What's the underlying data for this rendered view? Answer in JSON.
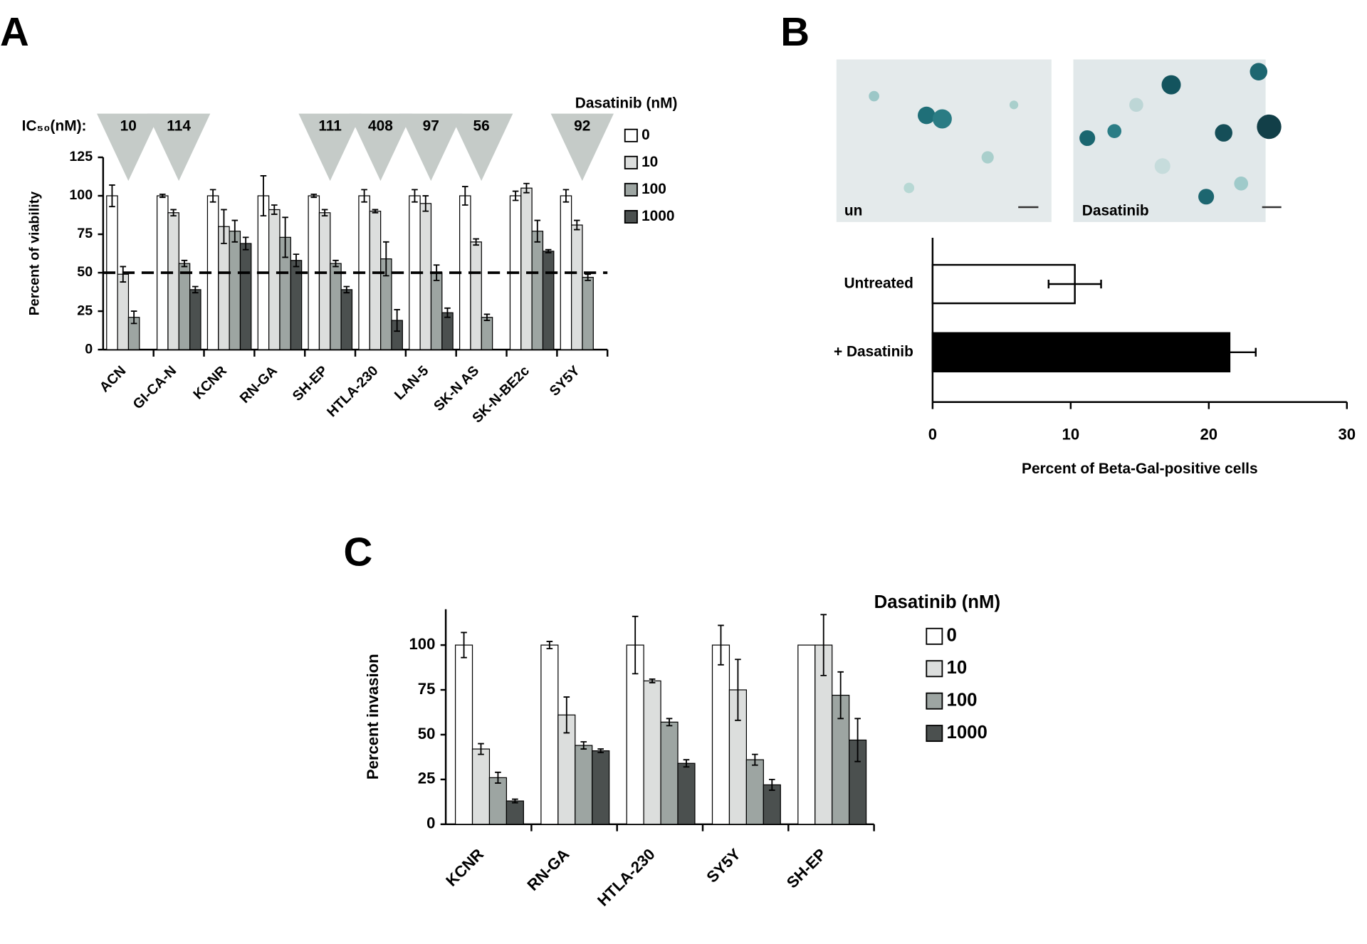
{
  "chart_data": [
    {
      "type": "bar",
      "panel": "A",
      "ylabel": "Percent of viability",
      "categories": [
        "ACN",
        "GI-CA-N",
        "KCNR",
        "RN-GA",
        "SH-EP",
        "HTLA-230",
        "LAN-5",
        "SK-N AS",
        "SK-N-BE2c",
        "SY5Y"
      ],
      "legend_title": "Dasatinib (nM)",
      "series": [
        {
          "name": "0",
          "color": "#ffffff",
          "values": [
            100,
            100,
            100,
            100,
            100,
            100,
            100,
            100,
            100,
            100
          ],
          "errors": [
            7,
            1,
            4,
            13,
            1,
            4,
            4,
            6,
            3,
            4
          ]
        },
        {
          "name": "10",
          "color": "#dcdedd",
          "values": [
            49,
            89,
            80,
            91,
            89,
            90,
            95,
            70,
            105,
            81
          ],
          "errors": [
            5,
            2,
            11,
            3,
            2,
            1,
            5,
            2,
            3,
            3
          ]
        },
        {
          "name": "100",
          "color": "#9da5a2",
          "values": [
            21,
            56,
            77,
            73,
            56,
            59,
            50,
            21,
            77,
            47
          ],
          "errors": [
            4,
            2,
            7,
            13,
            2,
            11,
            5,
            2,
            7,
            2
          ]
        },
        {
          "name": "1000",
          "color": "#4b504f",
          "values": [
            null,
            39,
            69,
            58,
            39,
            19,
            24,
            null,
            64,
            null
          ],
          "errors": [
            null,
            2,
            4,
            4,
            2,
            7,
            3,
            null,
            1,
            null
          ]
        }
      ],
      "ylim": [
        0,
        125
      ],
      "yticks": [
        0,
        25,
        50,
        75,
        100,
        125
      ],
      "threshold": 50,
      "ic50_label": "IC₅₀(nM):",
      "ic50": [
        10,
        114,
        null,
        null,
        111,
        408,
        97,
        56,
        null,
        92
      ]
    },
    {
      "type": "hbar",
      "panel": "B",
      "images": [
        {
          "label": "un"
        },
        {
          "label": "Dasatinib"
        }
      ],
      "categories": [
        "Untreated",
        "+ Dasatinib"
      ],
      "values": [
        10.3,
        21.5
      ],
      "errors": [
        1.9,
        1.9
      ],
      "colors": [
        "#ffffff",
        "#000000"
      ],
      "xlim": [
        0,
        30
      ],
      "xticks": [
        0,
        10,
        20,
        30
      ],
      "xlabel": "Percent of Beta-Gal-positive cells"
    },
    {
      "type": "bar",
      "panel": "C",
      "ylabel": "Percent invasion",
      "categories": [
        "KCNR",
        "RN-GA",
        "HTLA-230",
        "SY5Y",
        "SH-EP"
      ],
      "legend_title": "Dasatinib (nM)",
      "series": [
        {
          "name": "0",
          "color": "#ffffff",
          "values": [
            100,
            100,
            100,
            100,
            100
          ],
          "errors": [
            7,
            2,
            16,
            11,
            null
          ]
        },
        {
          "name": "10",
          "color": "#dcdedd",
          "values": [
            42,
            61,
            80,
            75,
            100
          ],
          "errors": [
            3,
            10,
            1,
            17,
            17
          ]
        },
        {
          "name": "100",
          "color": "#9da5a2",
          "values": [
            26,
            44,
            57,
            36,
            72
          ],
          "errors": [
            3,
            2,
            2,
            3,
            13
          ]
        },
        {
          "name": "1000",
          "color": "#4b504f",
          "values": [
            13,
            41,
            34,
            22,
            47
          ],
          "errors": [
            1,
            1,
            2,
            3,
            12
          ]
        }
      ],
      "ylim": [
        0,
        120
      ],
      "yticks": [
        0,
        25,
        50,
        75,
        100
      ]
    }
  ]
}
